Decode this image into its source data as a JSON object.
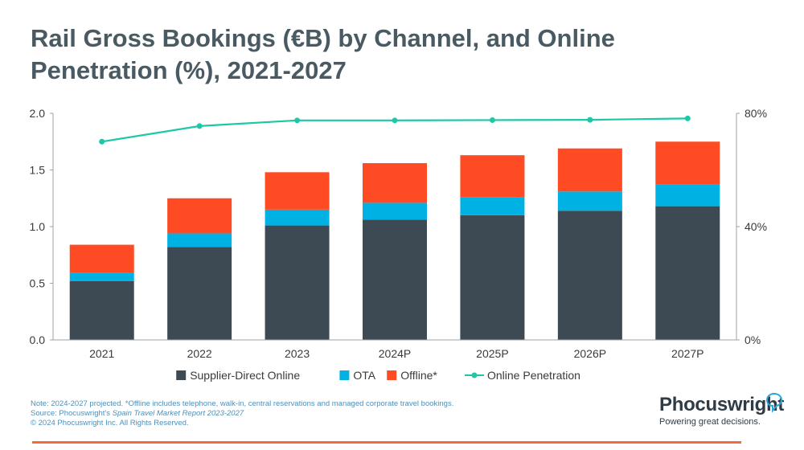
{
  "title": "Rail Gross Bookings (€B) by Channel, and Online Penetration (%), 2021-2027",
  "chart_data": {
    "type": "bar",
    "stacked": true,
    "categories": [
      "2021",
      "2022",
      "2023",
      "2024P",
      "2025P",
      "2026P",
      "2027P"
    ],
    "series": [
      {
        "name": "Supplier-Direct Online",
        "color": "#3d4a53",
        "values": [
          0.52,
          0.82,
          1.01,
          1.06,
          1.1,
          1.14,
          1.18
        ]
      },
      {
        "name": "OTA",
        "color": "#00b2e3",
        "values": [
          0.07,
          0.12,
          0.14,
          0.15,
          0.16,
          0.17,
          0.19
        ]
      },
      {
        "name": "Offline*",
        "color": "#ff4b23",
        "values": [
          0.25,
          0.31,
          0.33,
          0.35,
          0.37,
          0.38,
          0.38
        ]
      }
    ],
    "line_series": {
      "name": "Online Penetration",
      "color": "#1ec7a5",
      "axis": "right",
      "values": [
        70,
        75.5,
        77.5,
        77.5,
        77.6,
        77.7,
        78.2
      ]
    },
    "ylim": [
      0,
      2.0
    ],
    "yticks": [
      "0.0",
      "0.5",
      "1.0",
      "1.5",
      "2.0"
    ],
    "y2lim": [
      0,
      80
    ],
    "y2ticks": [
      "0%",
      "40%",
      "80%"
    ],
    "legend_position": "bottom",
    "grid": false
  },
  "footnote": {
    "line1": "Note: 2024-2027 projected. *Offline includes telephone, walk-in, central reservations and managed corporate travel bookings.",
    "line2_prefix": "Source: Phocuswright's ",
    "line2_italic": "Spain Travel Market Report 2023-2027",
    "line3": "© 2024 Phocuswright Inc. All Rights Reserved."
  },
  "brand": {
    "name": "Phocuswright",
    "tagline": "Powering great decisions."
  }
}
